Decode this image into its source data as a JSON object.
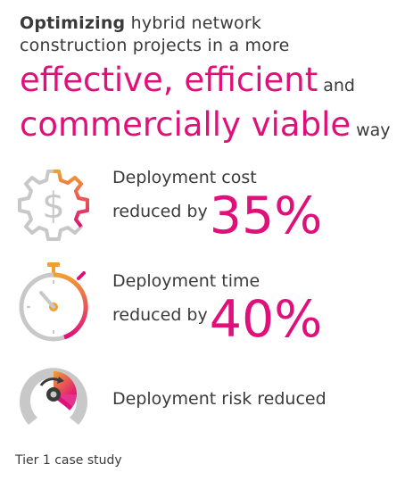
{
  "headline": {
    "bold": "Optimizing",
    "line1_rest": " hybrid network",
    "line2": "construction projects in a more",
    "line3": "effective, efficient",
    "and": "and",
    "line4": "commercially viable",
    "way": "way"
  },
  "stats": [
    {
      "icon": "gear-dollar-icon",
      "line1": "Deployment cost",
      "line2": "reduced by",
      "value": "35%"
    },
    {
      "icon": "stopwatch-icon",
      "line1": "Deployment time",
      "line2": "reduced by",
      "value": "40%"
    },
    {
      "icon": "risk-gauge-icon",
      "line1": "Deployment risk reduced"
    }
  ],
  "footer": "Tier 1 case study",
  "colors": {
    "accent": "#e0107a",
    "orange": "#f0a030",
    "gray": "#c8c8c8",
    "text": "#3a3a3a"
  }
}
